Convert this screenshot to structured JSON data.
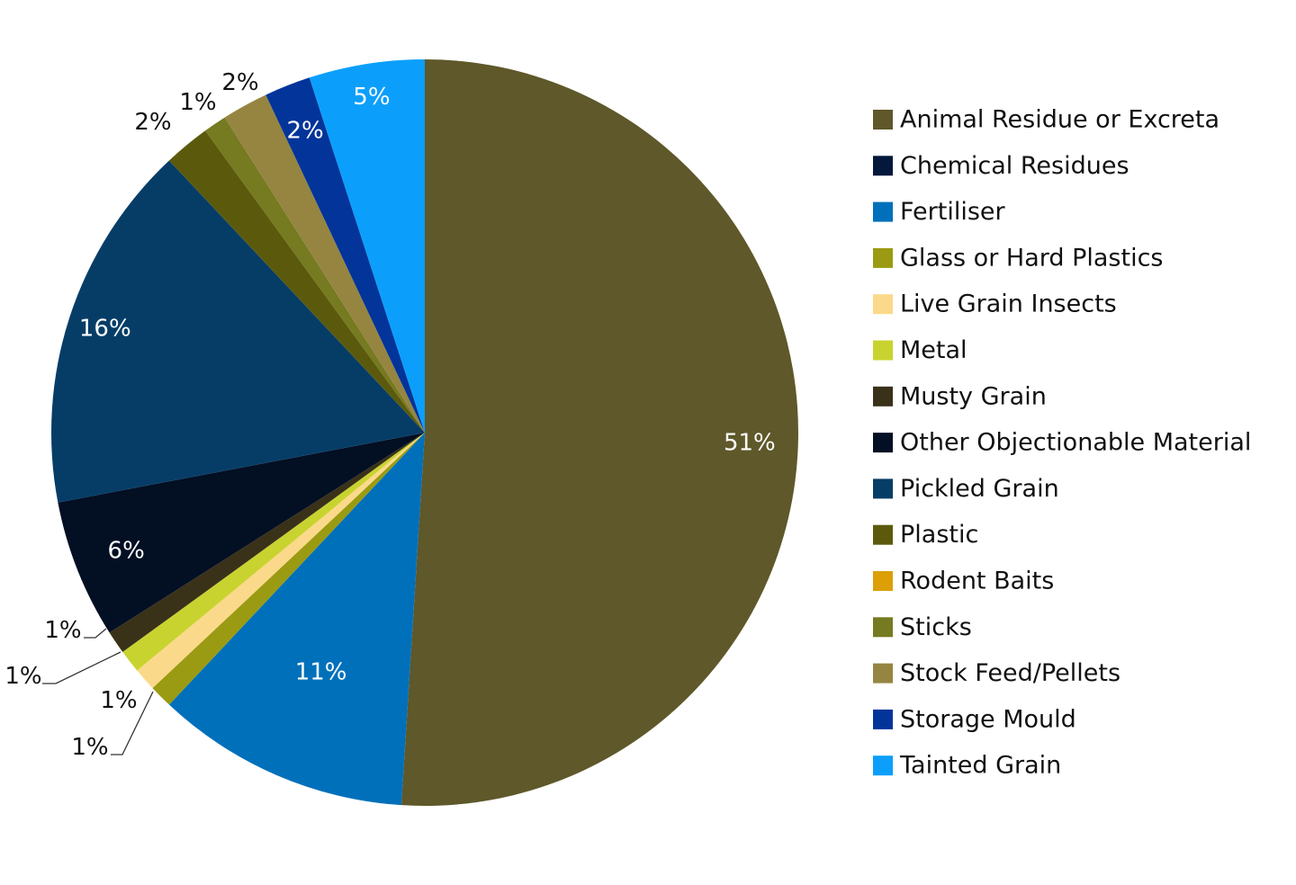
{
  "chart_data": {
    "type": "pie",
    "title": "",
    "legend_position": "right",
    "start_angle": "12 o'clock",
    "direction": "clockwise",
    "slices": [
      {
        "name": "Animal Residue or Excreta",
        "value": 51,
        "label": "51%",
        "color": "#5e582a"
      },
      {
        "name": "Fertiliser",
        "value": 11,
        "label": "11%",
        "color": "#0070bb"
      },
      {
        "name": "Glass or Hard Plastics",
        "value": 1,
        "label": "1%",
        "color": "#9a9b12"
      },
      {
        "name": "Live Grain Insects",
        "value": 1,
        "label": "1%",
        "color": "#fbd98a"
      },
      {
        "name": "Metal",
        "value": 1,
        "label": "1%",
        "color": "#c9d32f"
      },
      {
        "name": "Musty Grain",
        "value": 1,
        "label": "1%",
        "color": "#3a3119"
      },
      {
        "name": "Other Objectionable Material",
        "value": 6,
        "label": "6%",
        "color": "#030f23"
      },
      {
        "name": "Pickled Grain",
        "value": 16,
        "label": "16%",
        "color": "#063d67"
      },
      {
        "name": "Plastic",
        "value": 2,
        "label": "2%",
        "color": "#5b5a0c"
      },
      {
        "name": "Sticks",
        "value": 1,
        "label": "1%",
        "color": "#767a20"
      },
      {
        "name": "Stock Feed/Pellets",
        "value": 2,
        "label": "2%",
        "color": "#958540"
      },
      {
        "name": "Storage Mould",
        "value": 2,
        "label": "2%",
        "color": "#03349a"
      },
      {
        "name": "Tainted Grain",
        "value": 5,
        "label": "5%",
        "color": "#0b9ffb"
      }
    ],
    "legend": [
      {
        "name": "Animal Residue or Excreta",
        "color": "#5e582a"
      },
      {
        "name": "Chemical Residues",
        "color": "#03183a"
      },
      {
        "name": "Fertiliser",
        "color": "#0070bb"
      },
      {
        "name": "Glass or Hard Plastics",
        "color": "#9a9b12"
      },
      {
        "name": "Live Grain Insects",
        "color": "#fbd98a"
      },
      {
        "name": "Metal",
        "color": "#c9d32f"
      },
      {
        "name": "Musty Grain",
        "color": "#3a3119"
      },
      {
        "name": "Other Objectionable Material",
        "color": "#030f23"
      },
      {
        "name": "Pickled Grain",
        "color": "#063d67"
      },
      {
        "name": "Plastic",
        "color": "#5b5a0c"
      },
      {
        "name": "Rodent Baits",
        "color": "#dc9f06"
      },
      {
        "name": "Sticks",
        "color": "#767a20"
      },
      {
        "name": "Stock Feed/Pellets",
        "color": "#958540"
      },
      {
        "name": "Storage Mould",
        "color": "#03349a"
      },
      {
        "name": "Tainted Grain",
        "color": "#0b9ffb"
      }
    ]
  }
}
